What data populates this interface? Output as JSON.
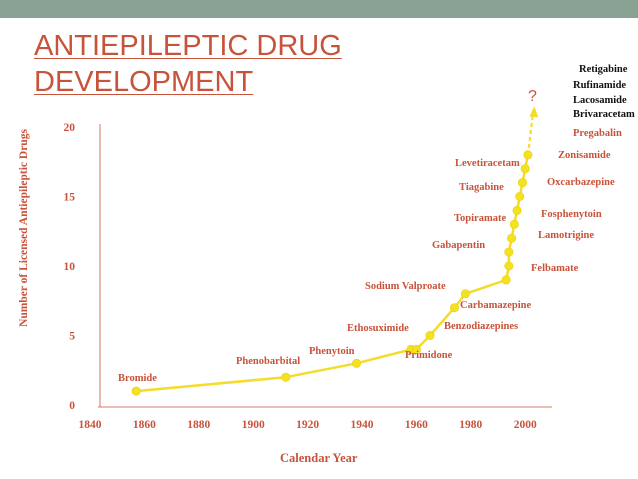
{
  "slide": {
    "title_line1": "ANTIEPILEPTIC DRUG",
    "title_line2": "DEVELOPMENT"
  },
  "colors": {
    "accent": "#c8533b",
    "line": "#f5dc2a",
    "marker": "#f5e21e",
    "topbar": "#8aa294"
  },
  "chart_data": {
    "type": "line",
    "title": "",
    "xlabel": "Calendar Year",
    "ylabel": "Number of Licensed Antiepileptic Drugs",
    "xlim": [
      1840,
      2010
    ],
    "ylim": [
      0,
      21
    ],
    "xticks": [
      "1840",
      "1860",
      "1880",
      "1900",
      "1920",
      "1940",
      "1960",
      "1980",
      "2000"
    ],
    "yticks": [
      "0",
      "5",
      "10",
      "15",
      "20"
    ],
    "grid": false,
    "question_mark": "?",
    "points": [
      {
        "x": 1857,
        "y": 1,
        "label": "Bromide"
      },
      {
        "x": 1912,
        "y": 2,
        "label": "Phenobarbital"
      },
      {
        "x": 1938,
        "y": 3,
        "label": "Phenytoin"
      },
      {
        "x": 1958,
        "y": 4,
        "label": "Primidone"
      },
      {
        "x": 1960,
        "y": 4,
        "label": "Ethosuximide"
      },
      {
        "x": 1965,
        "y": 5,
        "label": "Benzodiazepines"
      },
      {
        "x": 1974,
        "y": 7,
        "label": "Carbamazepine"
      },
      {
        "x": 1978,
        "y": 8,
        "label": "Sodium Valproate"
      },
      {
        "x": 1993,
        "y": 9,
        "label": "Felbamate"
      },
      {
        "x": 1994,
        "y": 10,
        "label": "Gabapentin"
      },
      {
        "x": 1994,
        "y": 11,
        "label": "Lamotrigine"
      },
      {
        "x": 1995,
        "y": 12,
        "label": "Topiramate"
      },
      {
        "x": 1996,
        "y": 13,
        "label": "Fosphenytoin"
      },
      {
        "x": 1997,
        "y": 14,
        "label": "Tiagabine"
      },
      {
        "x": 1998,
        "y": 15,
        "label": "Oxcarbazepine"
      },
      {
        "x": 1999,
        "y": 16,
        "label": "Levetiracetam"
      },
      {
        "x": 2000,
        "y": 17,
        "label": "Zonisamide"
      },
      {
        "x": 2001,
        "y": 18,
        "label": "Pregabalin"
      }
    ],
    "upcoming": [
      "Retigabine",
      "Rufinamide",
      "Lacosamide",
      "Brivaracetam"
    ]
  }
}
